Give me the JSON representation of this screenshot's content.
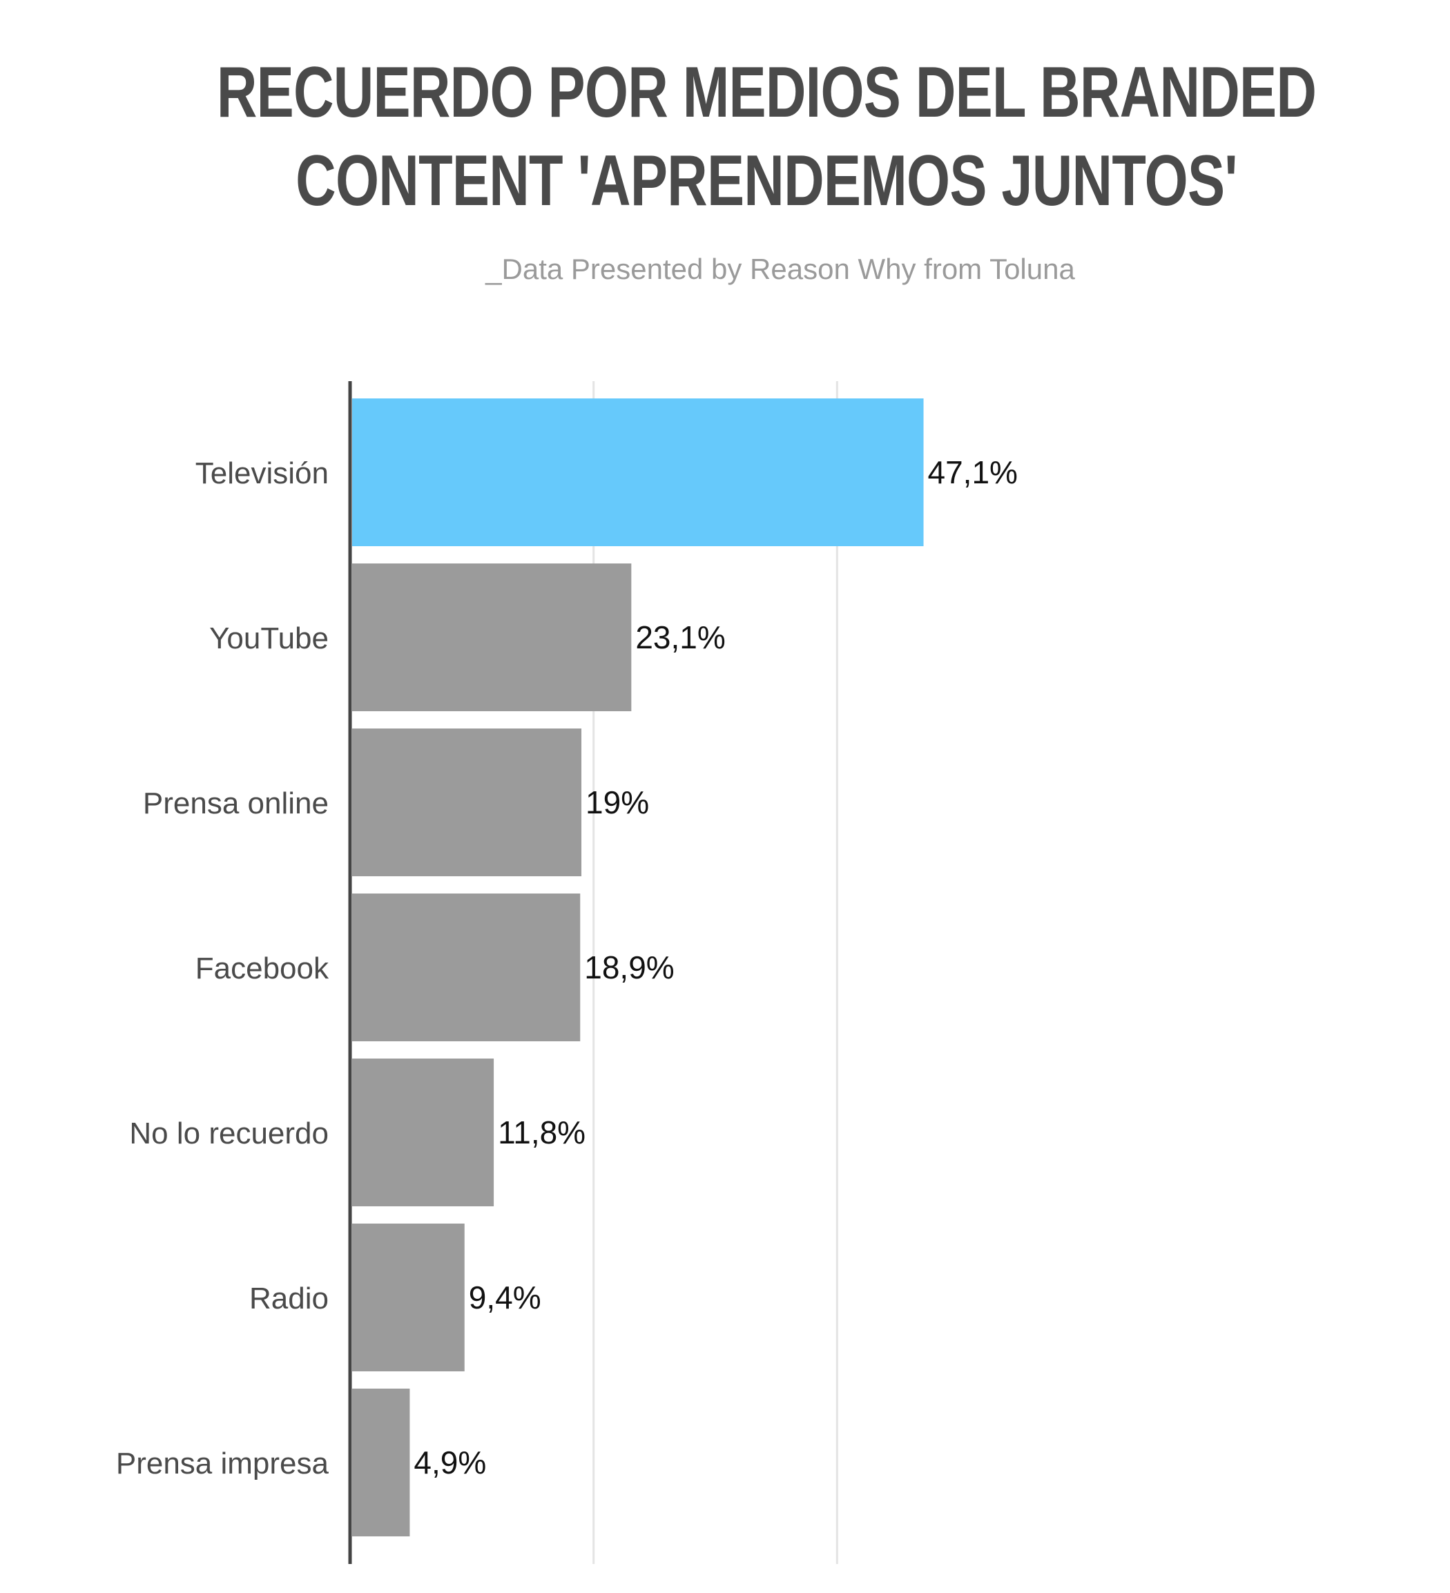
{
  "title_lines": [
    "RECUERDO POR MEDIOS DEL BRANDED",
    "CONTENT 'APRENDEMOS JUNTOS'"
  ],
  "subtitle": "_Data Presented by Reason Why from Toluna",
  "colors": {
    "highlight": "#66c9fb",
    "bar": "#9b9b9b",
    "axis": "#444444",
    "grid": "#e4e4e4"
  },
  "chart_data": {
    "type": "bar",
    "orientation": "horizontal",
    "title": "RECUERDO POR MEDIOS DEL BRANDED CONTENT 'APRENDEMOS JUNTOS'",
    "subtitle": "_Data Presented by Reason Why from Toluna",
    "categories": [
      "Televisión",
      "YouTube",
      "Prensa online",
      "Facebook",
      "No lo recuerdo",
      "Radio",
      "Prensa impresa"
    ],
    "values": [
      47.1,
      23.1,
      19,
      18.9,
      11.8,
      9.4,
      4.9
    ],
    "value_labels": [
      "47,1%",
      "23,1%",
      "19%",
      "18,9%",
      "11,8%",
      "9,4%",
      "4,9%"
    ],
    "highlight_index": 0,
    "xlim": [
      0,
      60
    ],
    "grid": true,
    "xlabel": "",
    "ylabel": ""
  }
}
